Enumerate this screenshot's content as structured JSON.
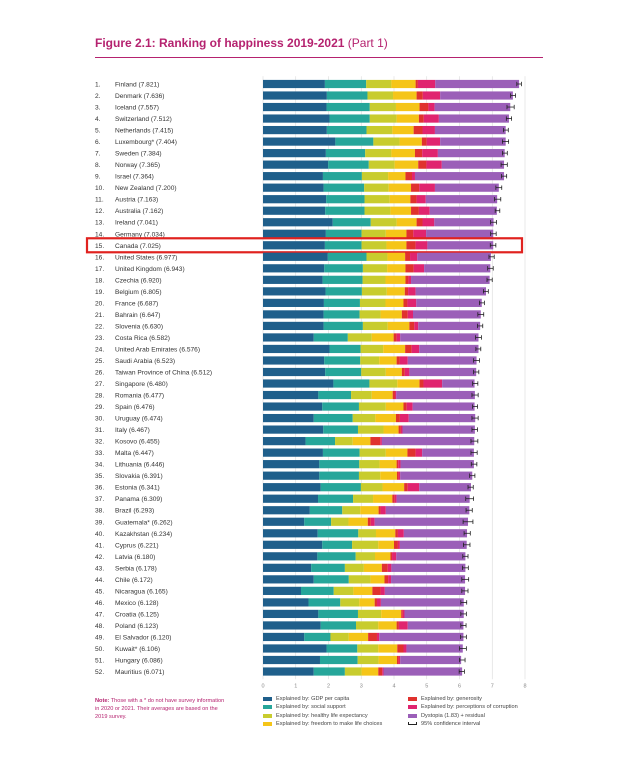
{
  "title": "Figure 2.1: Ranking of happiness 2019-2021",
  "title_part": "(Part 1)",
  "note_label": "Note:",
  "note_text": "Those with a * do not have survey information in 2020 or 2021. Their averages are based on the 2019 survey.",
  "colors": {
    "gdp": "#1f5f8b",
    "social": "#26a69a",
    "health": "#c8cc2e",
    "freedom": "#f5c518",
    "generosity": "#e0322e",
    "corruption": "#e0246f",
    "dystopia": "#9b5fb8",
    "highlight": "#e0221f",
    "title": "#b5226f"
  },
  "legend": [
    {
      "key": "gdp",
      "label": "Explained by: GDP per capita"
    },
    {
      "key": "social",
      "label": "Explained by: social support"
    },
    {
      "key": "health",
      "label": "Explained by: healthy life expectancy"
    },
    {
      "key": "freedom",
      "label": "Explained by: freedom to make life choices"
    },
    {
      "key": "generosity",
      "label": "Explained by: generosity"
    },
    {
      "key": "corruption",
      "label": "Explained by: perceptions of corruption"
    },
    {
      "key": "dystopia",
      "label": "Dystopia (1.83) + residual"
    },
    {
      "key": "ci",
      "label": "95% confidence interval"
    }
  ],
  "chart_data": {
    "type": "bar",
    "orientation": "horizontal",
    "stacked": true,
    "xlim": [
      0,
      8
    ],
    "x_ticks": [
      "0",
      "1",
      "2",
      "3",
      "4",
      "5",
      "6",
      "7",
      "8"
    ],
    "highlighted_category": "Canada (7.025)",
    "series_names": [
      "Explained by: GDP per capita",
      "Explained by: social support",
      "Explained by: healthy life expectancy",
      "Explained by: freedom to make life choices",
      "Explained by: generosity",
      "Explained by: perceptions of corruption",
      "Dystopia (1.83) + residual"
    ],
    "rows": [
      {
        "rank": "1.",
        "label": "Finland (7.821)",
        "score": 7.821,
        "parts": [
          1.89,
          1.26,
          0.77,
          0.74,
          0.07,
          0.53,
          2.56
        ],
        "ci": [
          7.75,
          7.89
        ]
      },
      {
        "rank": "2.",
        "label": "Denmark (7.636)",
        "score": 7.636,
        "parts": [
          1.95,
          1.24,
          0.78,
          0.72,
          0.19,
          0.53,
          2.22
        ],
        "ci": [
          7.56,
          7.71
        ]
      },
      {
        "rank": "3.",
        "label": "Iceland (7.557)",
        "score": 7.557,
        "parts": [
          1.94,
          1.32,
          0.8,
          0.72,
          0.27,
          0.19,
          2.31
        ],
        "ci": [
          7.45,
          7.67
        ]
      },
      {
        "rank": "4.",
        "label": "Switzerland (7.512)",
        "score": 7.512,
        "parts": [
          2.03,
          1.23,
          0.82,
          0.68,
          0.15,
          0.46,
          2.14
        ],
        "ci": [
          7.43,
          7.59
        ]
      },
      {
        "rank": "5.",
        "label": "Netherlands (7.415)",
        "score": 7.415,
        "parts": [
          1.95,
          1.21,
          0.79,
          0.65,
          0.27,
          0.38,
          2.16
        ],
        "ci": [
          7.34,
          7.49
        ]
      },
      {
        "rank": "6.",
        "label": "Luxembourg* (7.404)",
        "score": 7.404,
        "parts": [
          2.21,
          1.16,
          0.8,
          0.68,
          0.15,
          0.41,
          2.0
        ],
        "ci": [
          7.31,
          7.5
        ]
      },
      {
        "rank": "7.",
        "label": "Sweden (7.384)",
        "score": 7.384,
        "parts": [
          1.92,
          1.2,
          0.8,
          0.72,
          0.22,
          0.48,
          2.04
        ],
        "ci": [
          7.31,
          7.46
        ]
      },
      {
        "rank": "8.",
        "label": "Norway (7.365)",
        "score": 7.365,
        "parts": [
          1.99,
          1.24,
          0.79,
          0.72,
          0.25,
          0.47,
          1.9
        ],
        "ci": [
          7.27,
          7.46
        ]
      },
      {
        "rank": "9.",
        "label": "Israel (7.364)",
        "score": 7.364,
        "parts": [
          1.83,
          1.19,
          0.8,
          0.53,
          0.2,
          0.09,
          2.72
        ],
        "ci": [
          7.28,
          7.44
        ]
      },
      {
        "rank": "10.",
        "label": "New Zealand (7.200)",
        "score": 7.2,
        "parts": [
          1.85,
          1.24,
          0.75,
          0.68,
          0.25,
          0.48,
          1.95
        ],
        "ci": [
          7.11,
          7.29
        ]
      },
      {
        "rank": "11.",
        "label": "Austria (7.163)",
        "score": 7.163,
        "parts": [
          1.93,
          1.17,
          0.77,
          0.63,
          0.19,
          0.28,
          2.18
        ],
        "ci": [
          7.07,
          7.26
        ]
      },
      {
        "rank": "12.",
        "label": "Australia (7.162)",
        "score": 7.162,
        "parts": [
          1.9,
          1.2,
          0.79,
          0.63,
          0.24,
          0.33,
          2.05
        ],
        "ci": [
          7.09,
          7.23
        ]
      },
      {
        "rank": "13.",
        "label": "Ireland (7.041)",
        "score": 7.041,
        "parts": [
          2.13,
          1.16,
          0.79,
          0.61,
          0.18,
          0.36,
          1.81
        ],
        "ci": [
          6.95,
          7.13
        ]
      },
      {
        "rank": "14.",
        "label": "Germany (7.034)",
        "score": 7.034,
        "parts": [
          1.92,
          1.09,
          0.74,
          0.63,
          0.21,
          0.39,
          2.05
        ],
        "ci": [
          6.95,
          7.12
        ]
      },
      {
        "rank": "15.",
        "label": "Canada (7.025)",
        "score": 7.025,
        "parts": [
          1.89,
          1.12,
          0.76,
          0.61,
          0.28,
          0.36,
          2.01
        ],
        "ci": [
          6.94,
          7.11
        ]
      },
      {
        "rank": "16.",
        "label": "United States (6.977)",
        "score": 6.977,
        "parts": [
          1.98,
          1.18,
          0.64,
          0.54,
          0.15,
          0.22,
          2.25
        ],
        "ci": [
          6.9,
          7.06
        ]
      },
      {
        "rank": "17.",
        "label": "United Kingdom (6.943)",
        "score": 6.943,
        "parts": [
          1.87,
          1.18,
          0.74,
          0.56,
          0.25,
          0.32,
          2.02
        ],
        "ci": [
          6.86,
          7.03
        ]
      },
      {
        "rank": "18.",
        "label": "Czechia (6.920)",
        "score": 6.92,
        "parts": [
          1.82,
          1.22,
          0.7,
          0.61,
          0.09,
          0.08,
          2.4
        ],
        "ci": [
          6.84,
          7.0
        ]
      },
      {
        "rank": "19.",
        "label": "Belgium (6.805)",
        "score": 6.805,
        "parts": [
          1.91,
          1.11,
          0.76,
          0.55,
          0.1,
          0.23,
          2.15
        ],
        "ci": [
          6.73,
          6.88
        ]
      },
      {
        "rank": "20.",
        "label": "France (6.687)",
        "score": 6.687,
        "parts": [
          1.86,
          1.1,
          0.78,
          0.55,
          0.12,
          0.27,
          2.0
        ],
        "ci": [
          6.61,
          6.76
        ]
      },
      {
        "rank": "21.",
        "label": "Bahrain (6.647)",
        "score": 6.647,
        "parts": [
          1.85,
          1.1,
          0.64,
          0.65,
          0.18,
          0.16,
          2.07
        ],
        "ci": [
          6.56,
          6.74
        ]
      },
      {
        "rank": "22.",
        "label": "Slovenia (6.630)",
        "score": 6.63,
        "parts": [
          1.85,
          1.2,
          0.76,
          0.66,
          0.15,
          0.12,
          1.89
        ],
        "ci": [
          6.55,
          6.71
        ]
      },
      {
        "rank": "23.",
        "label": "Costa Rica (6.582)",
        "score": 6.582,
        "parts": [
          1.55,
          1.04,
          0.73,
          0.67,
          0.09,
          0.11,
          2.39
        ],
        "ci": [
          6.49,
          6.67
        ]
      },
      {
        "rank": "24.",
        "label": "United Arab Emirates (6.576)",
        "score": 6.576,
        "parts": [
          2.03,
          0.95,
          0.69,
          0.67,
          0.2,
          0.23,
          1.81
        ],
        "ci": [
          6.5,
          6.65
        ]
      },
      {
        "rank": "25.",
        "label": "Saudi Arabia (6.523)",
        "score": 6.523,
        "parts": [
          1.87,
          1.1,
          0.58,
          0.53,
          0.1,
          0.24,
          2.1
        ],
        "ci": [
          6.43,
          6.61
        ]
      },
      {
        "rank": "26.",
        "label": "Taiwan Province of China (6.512)",
        "score": 6.512,
        "parts": [
          1.9,
          1.1,
          0.75,
          0.49,
          0.09,
          0.14,
          2.04
        ],
        "ci": [
          6.43,
          6.59
        ]
      },
      {
        "rank": "27.",
        "label": "Singapore (6.480)",
        "score": 6.48,
        "parts": [
          2.15,
          1.1,
          0.85,
          0.68,
          0.12,
          0.57,
          0.99
        ],
        "ci": [
          6.4,
          6.56
        ]
      },
      {
        "rank": "28.",
        "label": "Romania (6.477)",
        "score": 6.477,
        "parts": [
          1.69,
          1.0,
          0.63,
          0.64,
          0.07,
          0.04,
          2.4
        ],
        "ci": [
          6.38,
          6.57
        ]
      },
      {
        "rank": "29.",
        "label": "Spain (6.476)",
        "score": 6.476,
        "parts": [
          1.81,
          1.12,
          0.82,
          0.54,
          0.1,
          0.18,
          1.89
        ],
        "ci": [
          6.4,
          6.55
        ]
      },
      {
        "rank": "30.",
        "label": "Uruguay (6.474)",
        "score": 6.474,
        "parts": [
          1.55,
          1.19,
          0.69,
          0.63,
          0.12,
          0.27,
          2.03
        ],
        "ci": [
          6.38,
          6.57
        ]
      },
      {
        "rank": "31.",
        "label": "Italy (6.467)",
        "score": 6.467,
        "parts": [
          1.84,
          1.06,
          0.78,
          0.46,
          0.07,
          0.05,
          2.21
        ],
        "ci": [
          6.38,
          6.55
        ]
      },
      {
        "rank": "32.",
        "label": "Kosovo (6.455)",
        "score": 6.455,
        "parts": [
          1.3,
          0.9,
          0.54,
          0.54,
          0.3,
          0.05,
          2.82
        ],
        "ci": [
          6.35,
          6.56
        ]
      },
      {
        "rank": "33.",
        "label": "Malta (6.447)",
        "score": 6.447,
        "parts": [
          1.83,
          1.12,
          0.8,
          0.66,
          0.25,
          0.2,
          1.58
        ],
        "ci": [
          6.35,
          6.54
        ]
      },
      {
        "rank": "34.",
        "label": "Lithuania (6.446)",
        "score": 6.446,
        "parts": [
          1.72,
          1.22,
          0.62,
          0.52,
          0.05,
          0.07,
          2.24
        ],
        "ci": [
          6.36,
          6.53
        ]
      },
      {
        "rank": "35.",
        "label": "Slovakia (6.391)",
        "score": 6.391,
        "parts": [
          1.72,
          1.21,
          0.65,
          0.51,
          0.05,
          0.05,
          2.2
        ],
        "ci": [
          6.31,
          6.47
        ]
      },
      {
        "rank": "36.",
        "label": "Estonia (6.341)",
        "score": 6.341,
        "parts": [
          1.76,
          1.23,
          0.66,
          0.66,
          0.11,
          0.35,
          1.58
        ],
        "ci": [
          6.26,
          6.42
        ]
      },
      {
        "rank": "37.",
        "label": "Panama (6.309)",
        "score": 6.309,
        "parts": [
          1.68,
          1.07,
          0.61,
          0.59,
          0.07,
          0.06,
          2.23
        ],
        "ci": [
          6.19,
          6.43
        ]
      },
      {
        "rank": "38.",
        "label": "Brazil (6.293)",
        "score": 6.293,
        "parts": [
          1.43,
          0.99,
          0.55,
          0.56,
          0.06,
          0.16,
          2.55
        ],
        "ci": [
          6.2,
          6.39
        ]
      },
      {
        "rank": "39.",
        "label": "Guatemala* (6.262)",
        "score": 6.262,
        "parts": [
          1.26,
          0.82,
          0.53,
          0.59,
          0.09,
          0.12,
          2.85
        ],
        "ci": [
          6.11,
          6.41
        ]
      },
      {
        "rank": "40.",
        "label": "Kazakhstan (6.234)",
        "score": 6.234,
        "parts": [
          1.67,
          1.24,
          0.54,
          0.59,
          0.08,
          0.18,
          1.93
        ],
        "ci": [
          6.14,
          6.33
        ]
      },
      {
        "rank": "41.",
        "label": "Cyprus (6.221)",
        "score": 6.221,
        "parts": [
          1.81,
          0.91,
          0.8,
          0.48,
          0.12,
          0.06,
          2.04
        ],
        "ci": [
          6.12,
          6.32
        ]
      },
      {
        "rank": "42.",
        "label": "Latvia (6.180)",
        "score": 6.18,
        "parts": [
          1.66,
          1.17,
          0.59,
          0.47,
          0.05,
          0.13,
          2.11
        ],
        "ci": [
          6.1,
          6.26
        ]
      },
      {
        "rank": "43.",
        "label": "Serbia (6.178)",
        "score": 6.178,
        "parts": [
          1.47,
          1.03,
          0.58,
          0.55,
          0.18,
          0.11,
          2.26
        ],
        "ci": [
          6.09,
          6.27
        ]
      },
      {
        "rank": "44.",
        "label": "Chile (6.172)",
        "score": 6.172,
        "parts": [
          1.55,
          1.07,
          0.66,
          0.43,
          0.11,
          0.09,
          2.26
        ],
        "ci": [
          6.07,
          6.28
        ]
      },
      {
        "rank": "45.",
        "label": "Nicaragua (6.165)",
        "score": 6.165,
        "parts": [
          1.16,
          1.0,
          0.6,
          0.58,
          0.25,
          0.13,
          2.45
        ],
        "ci": [
          6.07,
          6.26
        ]
      },
      {
        "rank": "46.",
        "label": "Mexico (6.128)",
        "score": 6.128,
        "parts": [
          1.39,
          0.97,
          0.58,
          0.47,
          0.07,
          0.12,
          2.53
        ],
        "ci": [
          6.04,
          6.22
        ]
      },
      {
        "rank": "47.",
        "label": "Croatia (6.125)",
        "score": 6.125,
        "parts": [
          1.69,
          1.21,
          0.71,
          0.61,
          0.05,
          0.05,
          1.81
        ],
        "ci": [
          6.04,
          6.21
        ]
      },
      {
        "rank": "48.",
        "label": "Poland (6.123)",
        "score": 6.123,
        "parts": [
          1.76,
          1.08,
          0.68,
          0.56,
          0.07,
          0.27,
          1.7
        ],
        "ci": [
          6.04,
          6.2
        ]
      },
      {
        "rank": "49.",
        "label": "El Salvador (6.120)",
        "score": 6.12,
        "parts": [
          1.26,
          0.8,
          0.56,
          0.59,
          0.27,
          0.07,
          2.57
        ],
        "ci": [
          6.03,
          6.21
        ]
      },
      {
        "rank": "50.",
        "label": "Kuwait* (6.106)",
        "score": 6.106,
        "parts": [
          1.94,
          0.94,
          0.64,
          0.58,
          0.19,
          0.09,
          1.72
        ],
        "ci": [
          6.0,
          6.21
        ]
      },
      {
        "rank": "51.",
        "label": "Hungary (6.086)",
        "score": 6.086,
        "parts": [
          1.74,
          1.15,
          0.64,
          0.56,
          0.05,
          0.05,
          1.86
        ],
        "ci": [
          6.0,
          6.17
        ]
      },
      {
        "rank": "52.",
        "label": "Mauritius (6.071)",
        "score": 6.071,
        "parts": [
          1.55,
          0.95,
          0.51,
          0.51,
          0.12,
          0.04,
          2.4
        ],
        "ci": [
          5.99,
          6.15
        ]
      }
    ]
  }
}
